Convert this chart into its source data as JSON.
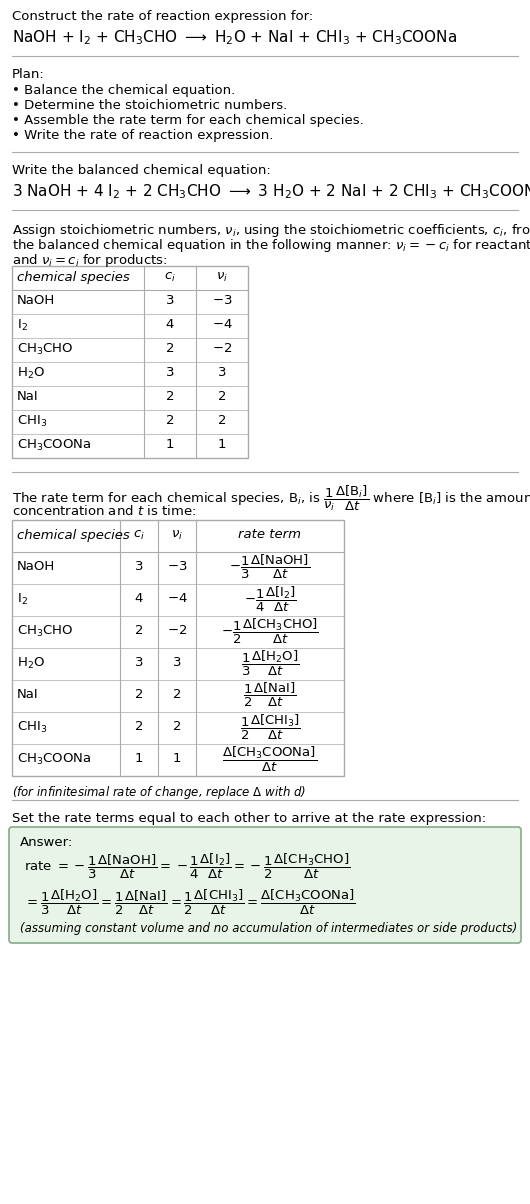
{
  "title_line1": "Construct the rate of reaction expression for:",
  "bg_color": "#ffffff",
  "text_color": "#000000",
  "table_border_color": "#aaaaaa",
  "answer_box_color": "#e8f4e8",
  "font_size": 9.5
}
